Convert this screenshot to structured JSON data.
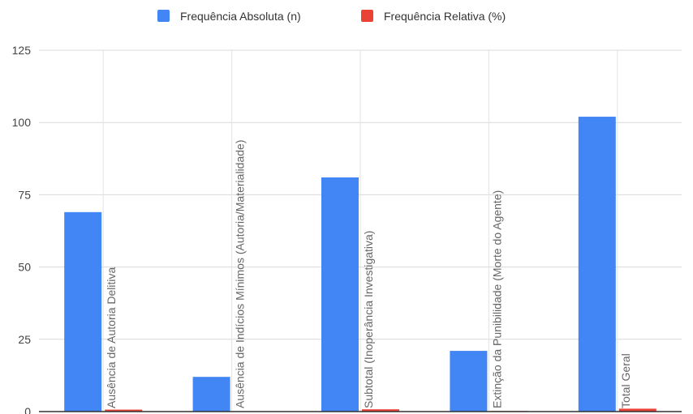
{
  "chart_data": {
    "type": "bar",
    "title": "",
    "xlabel": "",
    "ylabel": "",
    "categories": [
      "Ausência de Autoria Delitiva",
      "Ausência de Indícios Mínimos (Autoria/Materialidade)",
      "Subtotal (Inoperância Investigativa)",
      "Extinção da Punibilidade (Morte do Agente)",
      "Total Geral"
    ],
    "series": [
      {
        "name": "Frequência Absoluta (n)",
        "color": "#4285f4",
        "values": [
          69,
          12,
          81,
          21,
          102
        ]
      },
      {
        "name": "Frequência Relativa (%)",
        "color": "#ea4335",
        "values": [
          0.68,
          0.12,
          0.79,
          0.21,
          1.0
        ]
      }
    ],
    "ylim": [
      0,
      125
    ],
    "yticks": [
      "0",
      "25",
      "50",
      "75",
      "100",
      "125"
    ],
    "grid": true,
    "legend_position": "top"
  }
}
